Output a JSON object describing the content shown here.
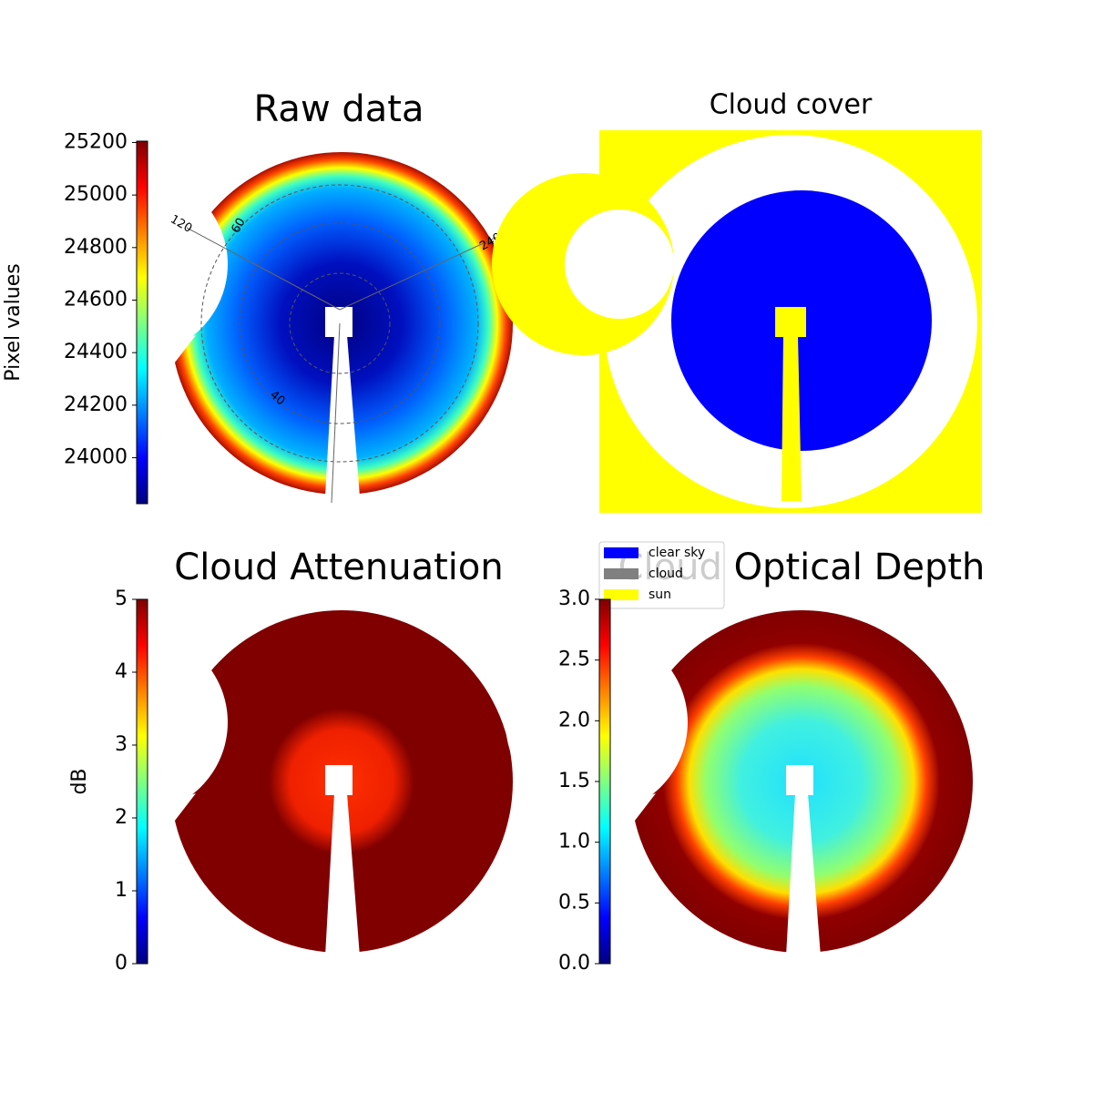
{
  "chart_data": [
    {
      "type": "image",
      "title": "Raw data",
      "annotations": [
        "120",
        "60",
        "240",
        "40"
      ],
      "colorbar": {
        "label": "Pixel values",
        "cmap": "jet",
        "lim": [
          23825,
          25205
        ],
        "ticks": [
          24000,
          24200,
          24400,
          24600,
          24800,
          25000,
          25200
        ]
      }
    },
    {
      "type": "image",
      "title": "Cloud cover",
      "legend": [
        {
          "name": "clear sky",
          "color": "#0000ff"
        },
        {
          "name": "cloud",
          "color": "#808080"
        },
        {
          "name": "sun",
          "color": "#ffff00"
        }
      ]
    },
    {
      "type": "image",
      "title": "Cloud Attenuation",
      "colorbar": {
        "label": "dB",
        "cmap": "jet",
        "lim": [
          0,
          5
        ],
        "ticks": [
          0,
          1,
          2,
          3,
          4,
          5
        ]
      }
    },
    {
      "type": "image",
      "title": "Cloud Optical Depth",
      "colorbar": {
        "cmap": "jet",
        "lim": [
          0,
          3
        ],
        "ticks": [
          {
            "value": 0,
            "label": "0.0"
          },
          0.5,
          {
            "value": 1,
            "label": "1.0"
          },
          1.5,
          {
            "value": 2,
            "label": "2.0"
          },
          2.5,
          {
            "value": 3,
            "label": "3.0"
          }
        ]
      }
    }
  ]
}
